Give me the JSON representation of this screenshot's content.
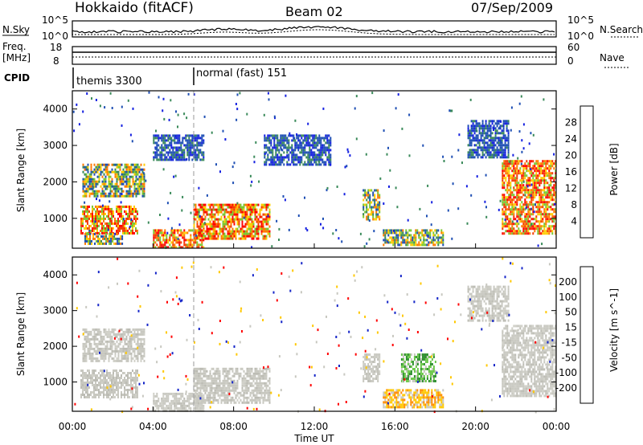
{
  "header": {
    "station": "Hokkaido (fitACF)",
    "beam": "Beam 02",
    "date": "07/Sep/2009"
  },
  "top_panels": {
    "nsky": {
      "label": "N.Sky",
      "ticks": [
        "10^5",
        "10^0"
      ],
      "right_label": "N.Search",
      "right_ticks": [
        "10^5",
        "10^0"
      ]
    },
    "freq": {
      "label_lines": [
        "Freq.",
        "[MHz]"
      ],
      "ticks": [
        "18",
        "8"
      ],
      "right_label": "Nave",
      "right_ticks": [
        "60",
        "0"
      ]
    },
    "cpid": {
      "label": "CPID",
      "modes": [
        {
          "name": "themis 3300",
          "start_hour": 0.0
        },
        {
          "name": "normal (fast) 151",
          "start_hour": 6.0
        }
      ]
    }
  },
  "chart_data": [
    {
      "type": "heatmap",
      "name": "power",
      "ylabel": "Slant Range [km]",
      "xlabel": "",
      "xlim": [
        0,
        24
      ],
      "ylim": [
        180,
        4500
      ],
      "yticks": [
        1000,
        2000,
        3000,
        4000
      ],
      "colorbar": {
        "label": "Power [dB]",
        "ticks": [
          "28",
          "24",
          "20",
          "16",
          "12",
          "8",
          "4"
        ],
        "colors": [
          "#ff0000",
          "#f23a00",
          "#ff7a00",
          "#ffcc00",
          "#7bc832",
          "#3a8a5a",
          "#1f4fb4",
          "#1520e0"
        ]
      },
      "regions": [
        {
          "t0": 0.5,
          "t1": 3.6,
          "r0": 1600,
          "r1": 2500,
          "level": "mid"
        },
        {
          "t0": 0.4,
          "t1": 3.2,
          "r0": 600,
          "r1": 1350,
          "level": "strong"
        },
        {
          "t0": 0.6,
          "t1": 2.5,
          "r0": 300,
          "r1": 600,
          "level": "mid"
        },
        {
          "t0": 6.0,
          "t1": 9.8,
          "r0": 450,
          "r1": 1400,
          "level": "strong"
        },
        {
          "t0": 4.0,
          "t1": 6.5,
          "r0": 200,
          "r1": 700,
          "level": "strong"
        },
        {
          "t0": 4.0,
          "t1": 6.5,
          "r0": 2600,
          "r1": 3300,
          "level": "weak"
        },
        {
          "t0": 9.5,
          "t1": 12.8,
          "r0": 2500,
          "r1": 3300,
          "level": "weak"
        },
        {
          "t0": 14.4,
          "t1": 15.2,
          "r0": 1000,
          "r1": 1800,
          "level": "mid"
        },
        {
          "t0": 15.4,
          "t1": 18.4,
          "r0": 300,
          "r1": 700,
          "level": "mid"
        },
        {
          "t0": 21.3,
          "t1": 24.0,
          "r0": 600,
          "r1": 2600,
          "level": "strong"
        },
        {
          "t0": 19.6,
          "t1": 21.6,
          "r0": 2700,
          "r1": 3700,
          "level": "weak"
        }
      ]
    },
    {
      "type": "heatmap",
      "name": "velocity",
      "ylabel": "Slant Range [km]",
      "xlabel": "Time UT",
      "xlim": [
        0,
        24
      ],
      "ylim": [
        180,
        4500
      ],
      "yticks": [
        1000,
        2000,
        3000,
        4000
      ],
      "xticks": [
        "00:00",
        "04:00",
        "08:00",
        "12:00",
        "16:00",
        "20:00",
        "00:00"
      ],
      "colorbar": {
        "label": "Velocity [m s^-1]",
        "ticks": [
          "200",
          "100",
          "50",
          "15",
          "-15",
          "-50",
          "-100",
          "-200"
        ],
        "colors": [
          "#1525c8",
          "#2a60c8",
          "#2f8f2f",
          "#6cc84a",
          "#c8c8c0",
          "#ffc800",
          "#ff8c00",
          "#ff4000",
          "#ff0000"
        ]
      },
      "regions": [
        {
          "t0": 0.5,
          "t1": 3.6,
          "r0": 1600,
          "r1": 2500,
          "level": "ground"
        },
        {
          "t0": 0.4,
          "t1": 3.2,
          "r0": 600,
          "r1": 1350,
          "level": "ground"
        },
        {
          "t0": 6.0,
          "t1": 9.8,
          "r0": 450,
          "r1": 1400,
          "level": "ground"
        },
        {
          "t0": 4.0,
          "t1": 6.5,
          "r0": 200,
          "r1": 700,
          "level": "ground"
        },
        {
          "t0": 14.4,
          "t1": 15.2,
          "r0": 1000,
          "r1": 1800,
          "level": "ground"
        },
        {
          "t0": 15.4,
          "t1": 18.4,
          "r0": 300,
          "r1": 800,
          "level": "neg"
        },
        {
          "t0": 21.3,
          "t1": 24.0,
          "r0": 600,
          "r1": 2600,
          "level": "ground"
        },
        {
          "t0": 19.6,
          "t1": 21.6,
          "r0": 2700,
          "r1": 3700,
          "level": "ground"
        },
        {
          "t0": 16.3,
          "t1": 18.0,
          "r0": 1000,
          "r1": 1800,
          "level": "pos"
        }
      ]
    }
  ]
}
